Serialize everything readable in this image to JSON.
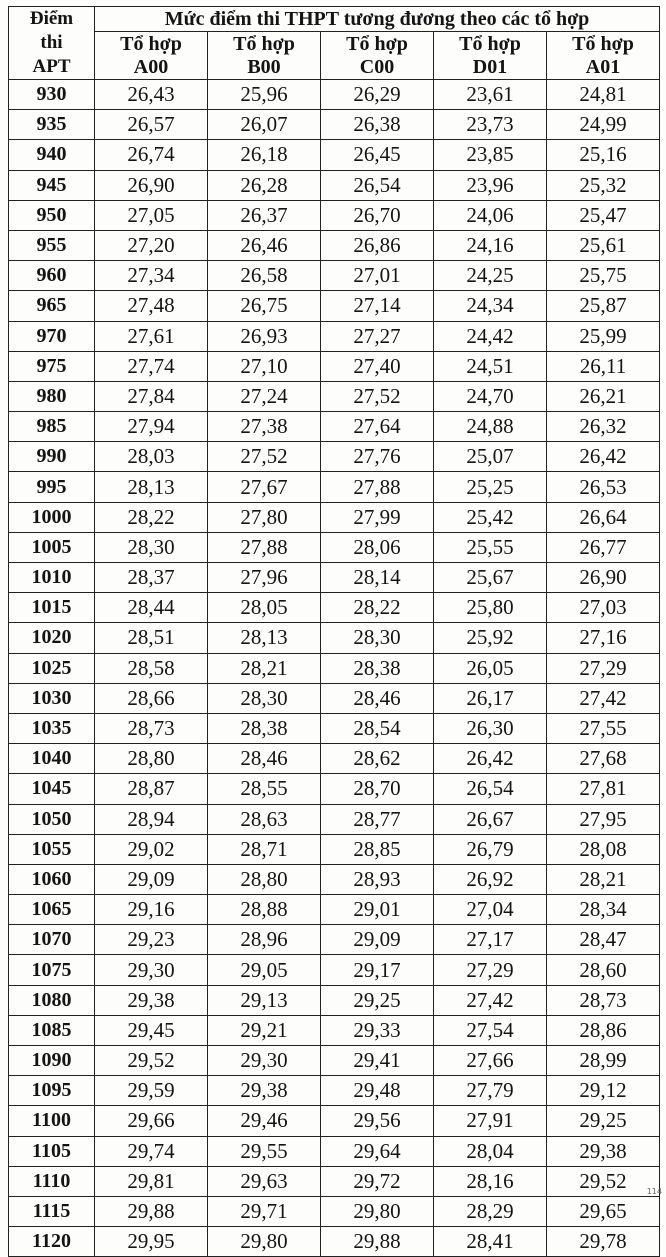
{
  "header": {
    "col0_lines": [
      "Điểm",
      "thi",
      "APT"
    ],
    "group_title": "Mức điểm thi THPT tương đương theo các tổ hợp",
    "combos": [
      {
        "line1": "Tổ hợp",
        "line2": "A00"
      },
      {
        "line1": "Tổ hợp",
        "line2": "B00"
      },
      {
        "line1": "Tổ hợp",
        "line2": "C00"
      },
      {
        "line1": "Tổ hợp",
        "line2": "D01"
      },
      {
        "line1": "Tổ hợp",
        "line2": "A01"
      }
    ]
  },
  "rows": [
    [
      "930",
      "26,43",
      "25,96",
      "26,29",
      "23,61",
      "24,81"
    ],
    [
      "935",
      "26,57",
      "26,07",
      "26,38",
      "23,73",
      "24,99"
    ],
    [
      "940",
      "26,74",
      "26,18",
      "26,45",
      "23,85",
      "25,16"
    ],
    [
      "945",
      "26,90",
      "26,28",
      "26,54",
      "23,96",
      "25,32"
    ],
    [
      "950",
      "27,05",
      "26,37",
      "26,70",
      "24,06",
      "25,47"
    ],
    [
      "955",
      "27,20",
      "26,46",
      "26,86",
      "24,16",
      "25,61"
    ],
    [
      "960",
      "27,34",
      "26,58",
      "27,01",
      "24,25",
      "25,75"
    ],
    [
      "965",
      "27,48",
      "26,75",
      "27,14",
      "24,34",
      "25,87"
    ],
    [
      "970",
      "27,61",
      "26,93",
      "27,27",
      "24,42",
      "25,99"
    ],
    [
      "975",
      "27,74",
      "27,10",
      "27,40",
      "24,51",
      "26,11"
    ],
    [
      "980",
      "27,84",
      "27,24",
      "27,52",
      "24,70",
      "26,21"
    ],
    [
      "985",
      "27,94",
      "27,38",
      "27,64",
      "24,88",
      "26,32"
    ],
    [
      "990",
      "28,03",
      "27,52",
      "27,76",
      "25,07",
      "26,42"
    ],
    [
      "995",
      "28,13",
      "27,67",
      "27,88",
      "25,25",
      "26,53"
    ],
    [
      "1000",
      "28,22",
      "27,80",
      "27,99",
      "25,42",
      "26,64"
    ],
    [
      "1005",
      "28,30",
      "27,88",
      "28,06",
      "25,55",
      "26,77"
    ],
    [
      "1010",
      "28,37",
      "27,96",
      "28,14",
      "25,67",
      "26,90"
    ],
    [
      "1015",
      "28,44",
      "28,05",
      "28,22",
      "25,80",
      "27,03"
    ],
    [
      "1020",
      "28,51",
      "28,13",
      "28,30",
      "25,92",
      "27,16"
    ],
    [
      "1025",
      "28,58",
      "28,21",
      "28,38",
      "26,05",
      "27,29"
    ],
    [
      "1030",
      "28,66",
      "28,30",
      "28,46",
      "26,17",
      "27,42"
    ],
    [
      "1035",
      "28,73",
      "28,38",
      "28,54",
      "26,30",
      "27,55"
    ],
    [
      "1040",
      "28,80",
      "28,46",
      "28,62",
      "26,42",
      "27,68"
    ],
    [
      "1045",
      "28,87",
      "28,55",
      "28,70",
      "26,54",
      "27,81"
    ],
    [
      "1050",
      "28,94",
      "28,63",
      "28,77",
      "26,67",
      "27,95"
    ],
    [
      "1055",
      "29,02",
      "28,71",
      "28,85",
      "26,79",
      "28,08"
    ],
    [
      "1060",
      "29,09",
      "28,80",
      "28,93",
      "26,92",
      "28,21"
    ],
    [
      "1065",
      "29,16",
      "28,88",
      "29,01",
      "27,04",
      "28,34"
    ],
    [
      "1070",
      "29,23",
      "28,96",
      "29,09",
      "27,17",
      "28,47"
    ],
    [
      "1075",
      "29,30",
      "29,05",
      "29,17",
      "27,29",
      "28,60"
    ],
    [
      "1080",
      "29,38",
      "29,13",
      "29,25",
      "27,42",
      "28,73"
    ],
    [
      "1085",
      "29,45",
      "29,21",
      "29,33",
      "27,54",
      "28,86"
    ],
    [
      "1090",
      "29,52",
      "29,30",
      "29,41",
      "27,66",
      "28,99"
    ],
    [
      "1095",
      "29,59",
      "29,38",
      "29,48",
      "27,79",
      "29,12"
    ],
    [
      "1100",
      "29,66",
      "29,46",
      "29,56",
      "27,91",
      "29,25"
    ],
    [
      "1105",
      "29,74",
      "29,55",
      "29,64",
      "28,04",
      "29,38"
    ],
    [
      "1110",
      "29,81",
      "29,63",
      "29,72",
      "28,16",
      "29,52"
    ],
    [
      "1115",
      "29,88",
      "29,71",
      "29,80",
      "28,29",
      "29,65"
    ],
    [
      "1120",
      "29,95",
      "29,80",
      "29,88",
      "28,41",
      "29,78"
    ]
  ],
  "footer": {
    "page_mark": "114"
  }
}
